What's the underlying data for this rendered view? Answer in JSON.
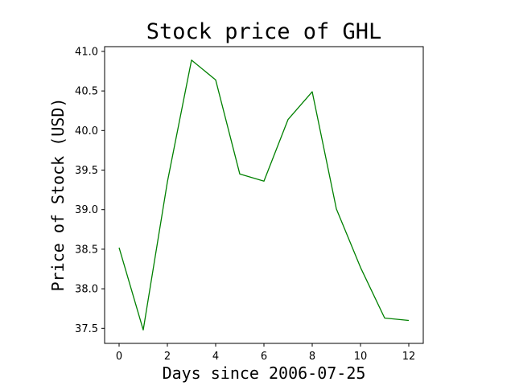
{
  "chart_data": {
    "type": "line",
    "title": "Stock price of GHL",
    "xlabel": "Days since 2006-07-25",
    "ylabel": "Price of Stock (USD)",
    "x": [
      0,
      1,
      2,
      3,
      4,
      5,
      6,
      7,
      8,
      9,
      10,
      11,
      12
    ],
    "series": [
      {
        "values": [
          38.52,
          37.48,
          39.35,
          40.89,
          40.64,
          39.45,
          39.36,
          40.14,
          40.49,
          39.01,
          38.27,
          37.63,
          37.6
        ],
        "color": "#008000"
      }
    ],
    "xlim": [
      -0.6,
      12.6
    ],
    "ylim": [
      37.31,
      41.06
    ],
    "xticks": [
      0,
      2,
      4,
      6,
      8,
      10,
      12
    ],
    "xtick_labels": [
      "0",
      "2",
      "4",
      "6",
      "8",
      "10",
      "12"
    ],
    "yticks": [
      37.5,
      38.0,
      38.5,
      39.0,
      39.5,
      40.0,
      40.5,
      41.0
    ],
    "ytick_labels": [
      "37.5",
      "38.0",
      "38.5",
      "39.0",
      "39.5",
      "40.0",
      "40.5",
      "41.0"
    ],
    "grid": false,
    "legend": "none"
  }
}
